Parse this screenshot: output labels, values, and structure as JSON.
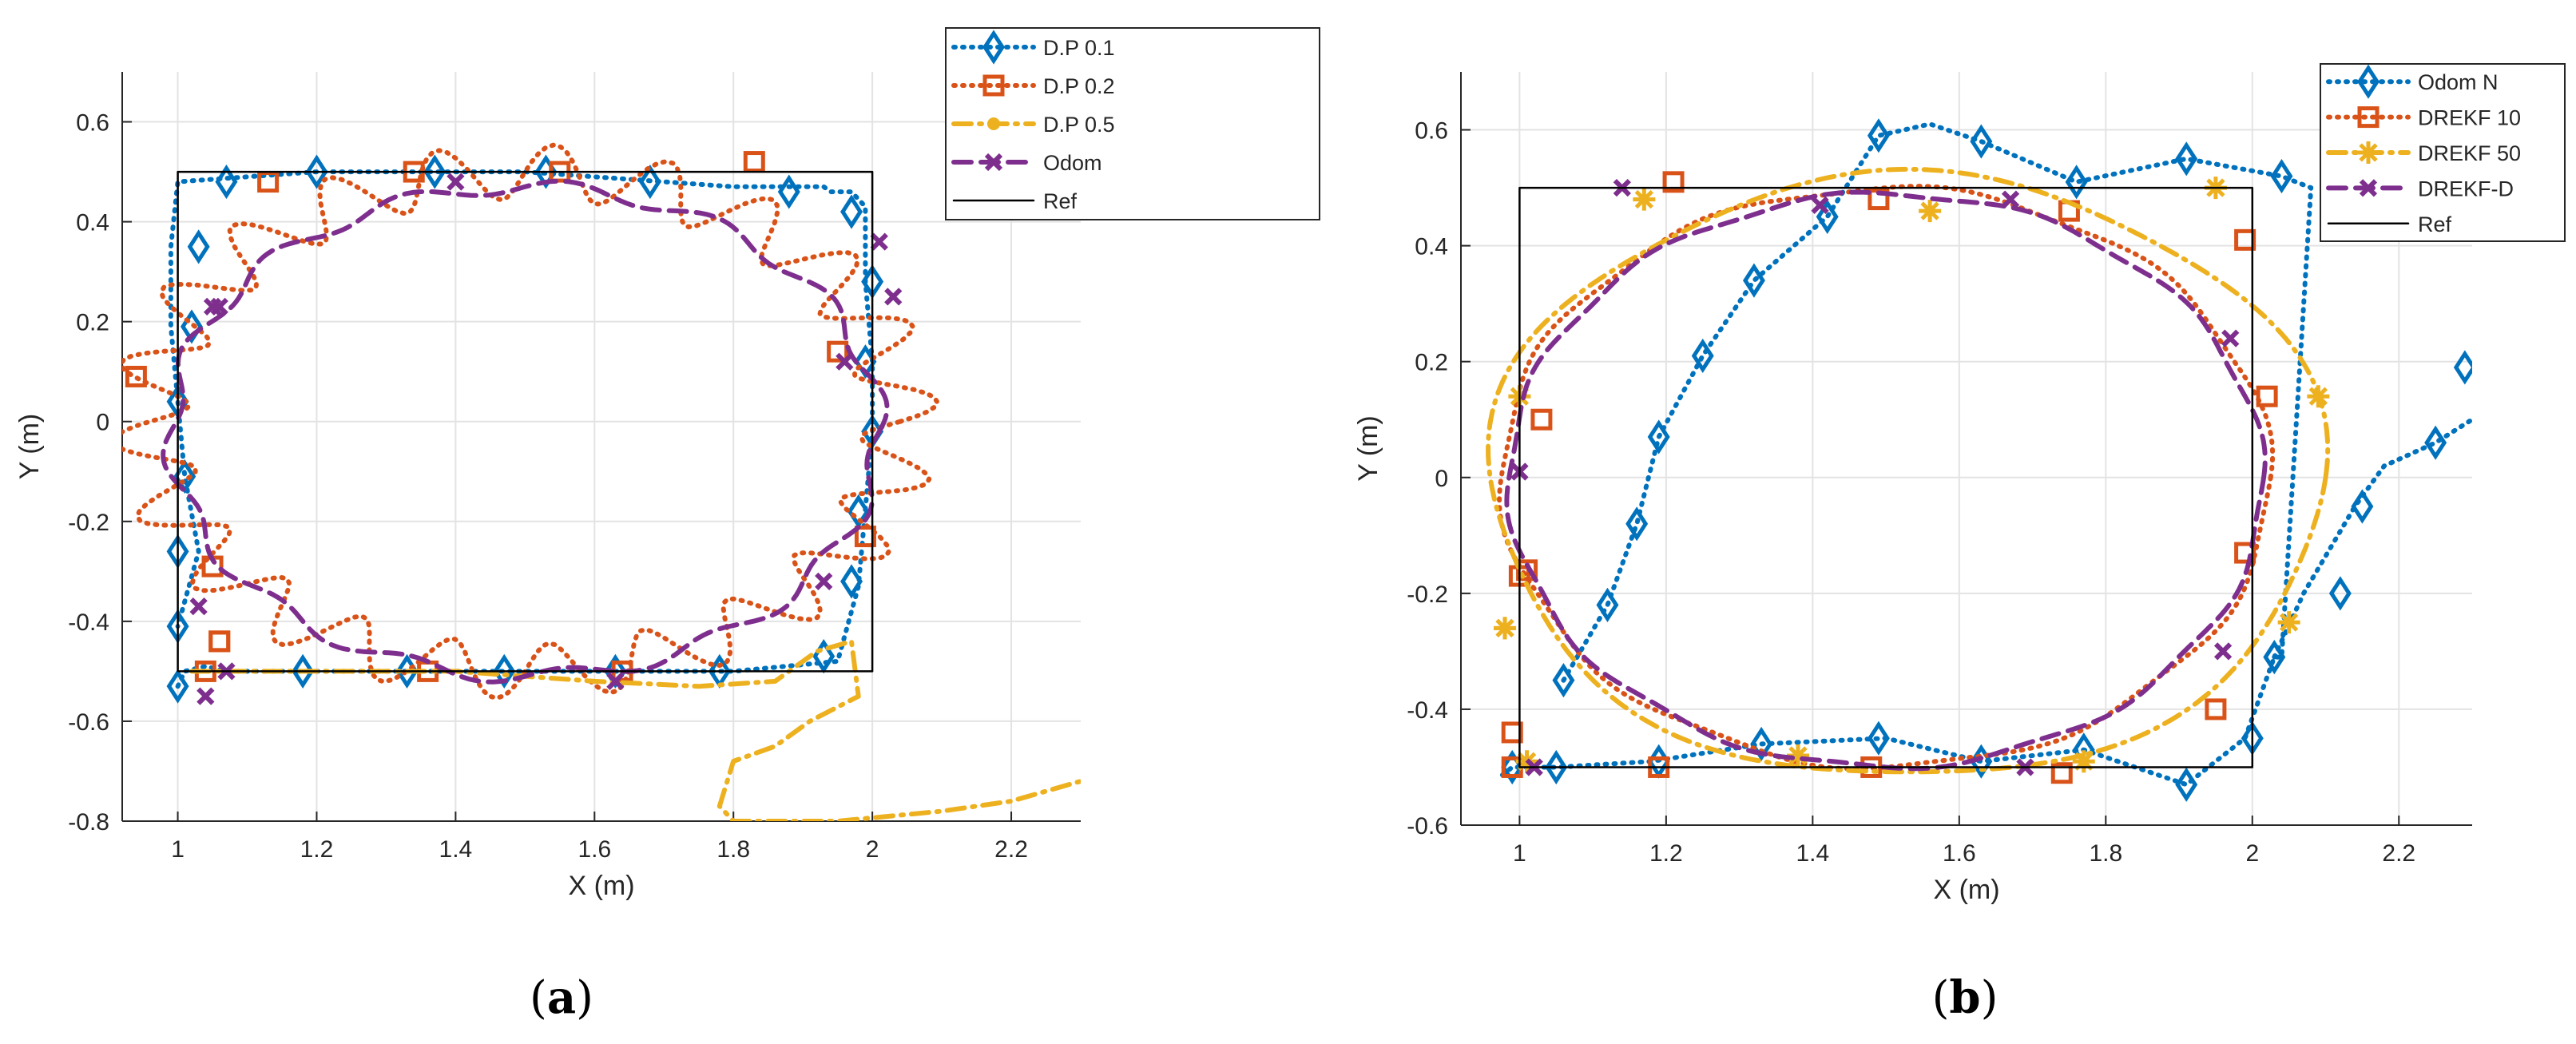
{
  "chart_data": [
    {
      "type": "line",
      "caption": "a",
      "xlabel": "X (m)",
      "ylabel": "Y (m)",
      "xlim": [
        0.92,
        2.3
      ],
      "ylim": [
        -0.8,
        0.7
      ],
      "xticks": [
        1,
        1.2,
        1.4,
        1.6,
        1.8,
        2,
        2.2
      ],
      "yticks": [
        -0.8,
        -0.6,
        -0.4,
        -0.2,
        0,
        0.2,
        0.4,
        0.6
      ],
      "xtick_labels": [
        "1",
        "1.2",
        "1.4",
        "1.6",
        "1.8",
        "2",
        "2.2"
      ],
      "ytick_labels": [
        "-0.8",
        "-0.6",
        "-0.4",
        "-0.2",
        "0",
        "0.2",
        "0.4",
        "0.6"
      ],
      "grid": true,
      "legend_position": "top-right",
      "series": [
        {
          "name": "D.P 0.1",
          "color": "#0072BD",
          "style": "dotted",
          "marker": "diamond",
          "x": [
            1.0,
            1.01,
            1.04,
            1.07,
            1.2,
            1.4,
            1.6,
            1.8,
            1.95,
            1.98,
            2.0,
            2.0,
            1.99,
            1.99,
            1.97,
            1.94,
            1.93,
            1.8,
            1.5,
            1.2,
            1.0,
            0.99,
            0.99,
            1.0,
            1.01,
            1.03,
            1.0
          ],
          "y": [
            -0.53,
            -0.5,
            -0.49,
            -0.5,
            -0.5,
            -0.5,
            -0.5,
            -0.5,
            -0.48,
            -0.33,
            -0.02,
            0.12,
            0.28,
            0.43,
            0.46,
            0.46,
            0.47,
            0.47,
            0.5,
            0.5,
            0.48,
            0.35,
            0.19,
            0.04,
            -0.11,
            -0.26,
            -0.41
          ],
          "marker_x": [
            1.0,
            1.18,
            1.33,
            1.47,
            1.63,
            1.78,
            1.93,
            1.97,
            1.98,
            2.0,
            1.99,
            2.0,
            1.97,
            1.88,
            1.68,
            1.53,
            1.37,
            1.2,
            1.07,
            1.03,
            1.02,
            1.0,
            1.01,
            1.0,
            1.0
          ],
          "marker_y": [
            -0.53,
            -0.5,
            -0.5,
            -0.5,
            -0.5,
            -0.5,
            -0.47,
            -0.32,
            -0.18,
            -0.02,
            0.12,
            0.28,
            0.42,
            0.46,
            0.48,
            0.5,
            0.5,
            0.5,
            0.48,
            0.35,
            0.19,
            0.04,
            -0.11,
            -0.26,
            -0.41
          ]
        },
        {
          "name": "D.P 0.2",
          "color": "#D95319",
          "style": "dotted",
          "marker": "square",
          "marker_x": [
            1.06,
            1.13,
            1.34,
            1.55,
            1.83,
            1.95,
            1.99,
            1.64,
            1.36,
            1.04,
            1.06,
            1.05,
            0.94
          ],
          "marker_y": [
            -0.44,
            0.48,
            0.5,
            0.5,
            0.52,
            0.14,
            -0.23,
            -0.5,
            -0.5,
            -0.5,
            -0.44,
            -0.29,
            0.09
          ]
        },
        {
          "name": "D.P 0.5",
          "color": "#EDB120",
          "style": "dashdot",
          "marker": "circle",
          "x": [
            1.02,
            1.2,
            1.4,
            1.6,
            1.75,
            1.86,
            1.92,
            1.97,
            1.98,
            1.91,
            1.86,
            1.8,
            1.78,
            1.8,
            1.95,
            2.1,
            2.2,
            2.3
          ],
          "y": [
            -0.5,
            -0.5,
            -0.5,
            -0.52,
            -0.53,
            -0.52,
            -0.46,
            -0.44,
            -0.55,
            -0.6,
            -0.65,
            -0.68,
            -0.77,
            -0.8,
            -0.8,
            -0.78,
            -0.76,
            -0.72
          ]
        },
        {
          "name": "Odom",
          "color": "#7E2F8E",
          "style": "dashed",
          "marker": "x",
          "marker_x": [
            1.07,
            1.04,
            1.06,
            1.4,
            1.63,
            1.93,
            2.01,
            2.03,
            1.96,
            1.05,
            1.03
          ],
          "marker_y": [
            -0.5,
            -0.55,
            0.23,
            0.48,
            -0.52,
            -0.32,
            0.36,
            0.25,
            0.12,
            0.23,
            -0.37
          ]
        },
        {
          "name": "Ref",
          "color": "#000000",
          "style": "solid",
          "marker": "none",
          "x": [
            1,
            2,
            2,
            1,
            1
          ],
          "y": [
            -0.5,
            -0.5,
            0.5,
            0.5,
            -0.5
          ]
        }
      ]
    },
    {
      "type": "line",
      "caption": "b",
      "xlabel": "X (m)",
      "ylabel": "Y (m)",
      "xlim": [
        0.92,
        2.3
      ],
      "ylim": [
        -0.6,
        0.7
      ],
      "xticks": [
        1,
        1.2,
        1.4,
        1.6,
        1.8,
        2,
        2.2
      ],
      "yticks": [
        -0.6,
        -0.4,
        -0.2,
        0,
        0.2,
        0.4,
        0.6
      ],
      "xtick_labels": [
        "1",
        "1.2",
        "1.4",
        "1.6",
        "1.8",
        "2",
        "2.2"
      ],
      "ytick_labels": [
        "-0.6",
        "-0.4",
        "-0.2",
        "0",
        "0.2",
        "0.4",
        "0.6"
      ],
      "grid": true,
      "legend_position": "top-right",
      "series": [
        {
          "name": "Odom N",
          "color": "#0072BD",
          "style": "dotted",
          "marker": "diamond",
          "x": [
            1.06,
            1.12,
            1.16,
            1.19,
            1.25,
            1.32,
            1.42,
            1.49,
            1.56,
            1.63,
            1.76,
            1.91,
            2.04,
            2.08,
            2.04,
            2.03,
            1.99,
            1.91,
            1.77,
            1.63,
            1.5,
            1.33,
            1.18,
            1.05,
            0.99,
            0.97
          ],
          "y": [
            -0.35,
            -0.22,
            -0.08,
            0.07,
            0.21,
            0.34,
            0.45,
            0.59,
            0.61,
            0.58,
            0.51,
            0.55,
            0.52,
            0.5,
            -0.31,
            -0.31,
            -0.45,
            -0.53,
            -0.47,
            -0.49,
            -0.45,
            -0.46,
            -0.49,
            -0.5,
            -0.5,
            -0.52
          ],
          "tail_x": [
            2.03,
            2.07,
            2.14,
            2.18,
            2.25,
            2.3
          ],
          "tail_y": [
            -0.31,
            -0.2,
            -0.05,
            0.02,
            0.06,
            0.1
          ],
          "marker_x": [
            1.06,
            1.12,
            1.16,
            1.19,
            1.25,
            1.32,
            1.42,
            1.49,
            1.63,
            1.76,
            1.91,
            2.04,
            2.29,
            2.25,
            2.15,
            2.12,
            2.03,
            2.0,
            1.91,
            1.77,
            1.63,
            1.49,
            1.33,
            1.19,
            1.05,
            0.99
          ],
          "marker_y": [
            -0.35,
            -0.22,
            -0.08,
            0.07,
            0.21,
            0.34,
            0.45,
            0.59,
            0.58,
            0.51,
            0.55,
            0.52,
            0.19,
            0.06,
            -0.05,
            -0.2,
            -0.31,
            -0.45,
            -0.53,
            -0.47,
            -0.49,
            -0.45,
            -0.46,
            -0.49,
            -0.5,
            -0.5
          ]
        },
        {
          "name": "DREKF 10",
          "color": "#D95319",
          "style": "dotted",
          "marker": "square",
          "marker_x": [
            0.99,
            1.01,
            1.03,
            1.21,
            1.49,
            1.75,
            1.99,
            2.02,
            1.99,
            1.95,
            1.74,
            1.48,
            1.19,
            0.99,
            1.0
          ],
          "marker_y": [
            -0.44,
            -0.16,
            0.1,
            0.51,
            0.48,
            0.46,
            0.41,
            0.14,
            -0.13,
            -0.4,
            -0.51,
            -0.5,
            -0.5,
            -0.5,
            -0.17
          ]
        },
        {
          "name": "DREKF 50",
          "color": "#EDB120",
          "style": "dashdot",
          "marker": "star",
          "marker_x": [
            0.98,
            1.0,
            1.17,
            1.56,
            1.95,
            2.09,
            2.05,
            1.77,
            1.38,
            1.01,
            0.98
          ],
          "marker_y": [
            -0.26,
            0.14,
            0.48,
            0.46,
            0.5,
            0.14,
            -0.25,
            -0.49,
            -0.48,
            -0.49,
            -0.26
          ]
        },
        {
          "name": "DREKF-D",
          "color": "#7E2F8E",
          "style": "dashed",
          "marker": "x",
          "marker_x": [
            1.0,
            1.14,
            1.41,
            1.67,
            1.97,
            1.96,
            1.69,
            1.02,
            1.0
          ],
          "marker_y": [
            0.01,
            0.5,
            0.47,
            0.48,
            0.24,
            -0.3,
            -0.5,
            -0.5,
            0.01
          ]
        },
        {
          "name": "Ref",
          "color": "#000000",
          "style": "solid",
          "marker": "none",
          "x": [
            1,
            2,
            2,
            1,
            1
          ],
          "y": [
            -0.5,
            -0.5,
            0.5,
            0.5,
            -0.5
          ]
        }
      ]
    }
  ]
}
